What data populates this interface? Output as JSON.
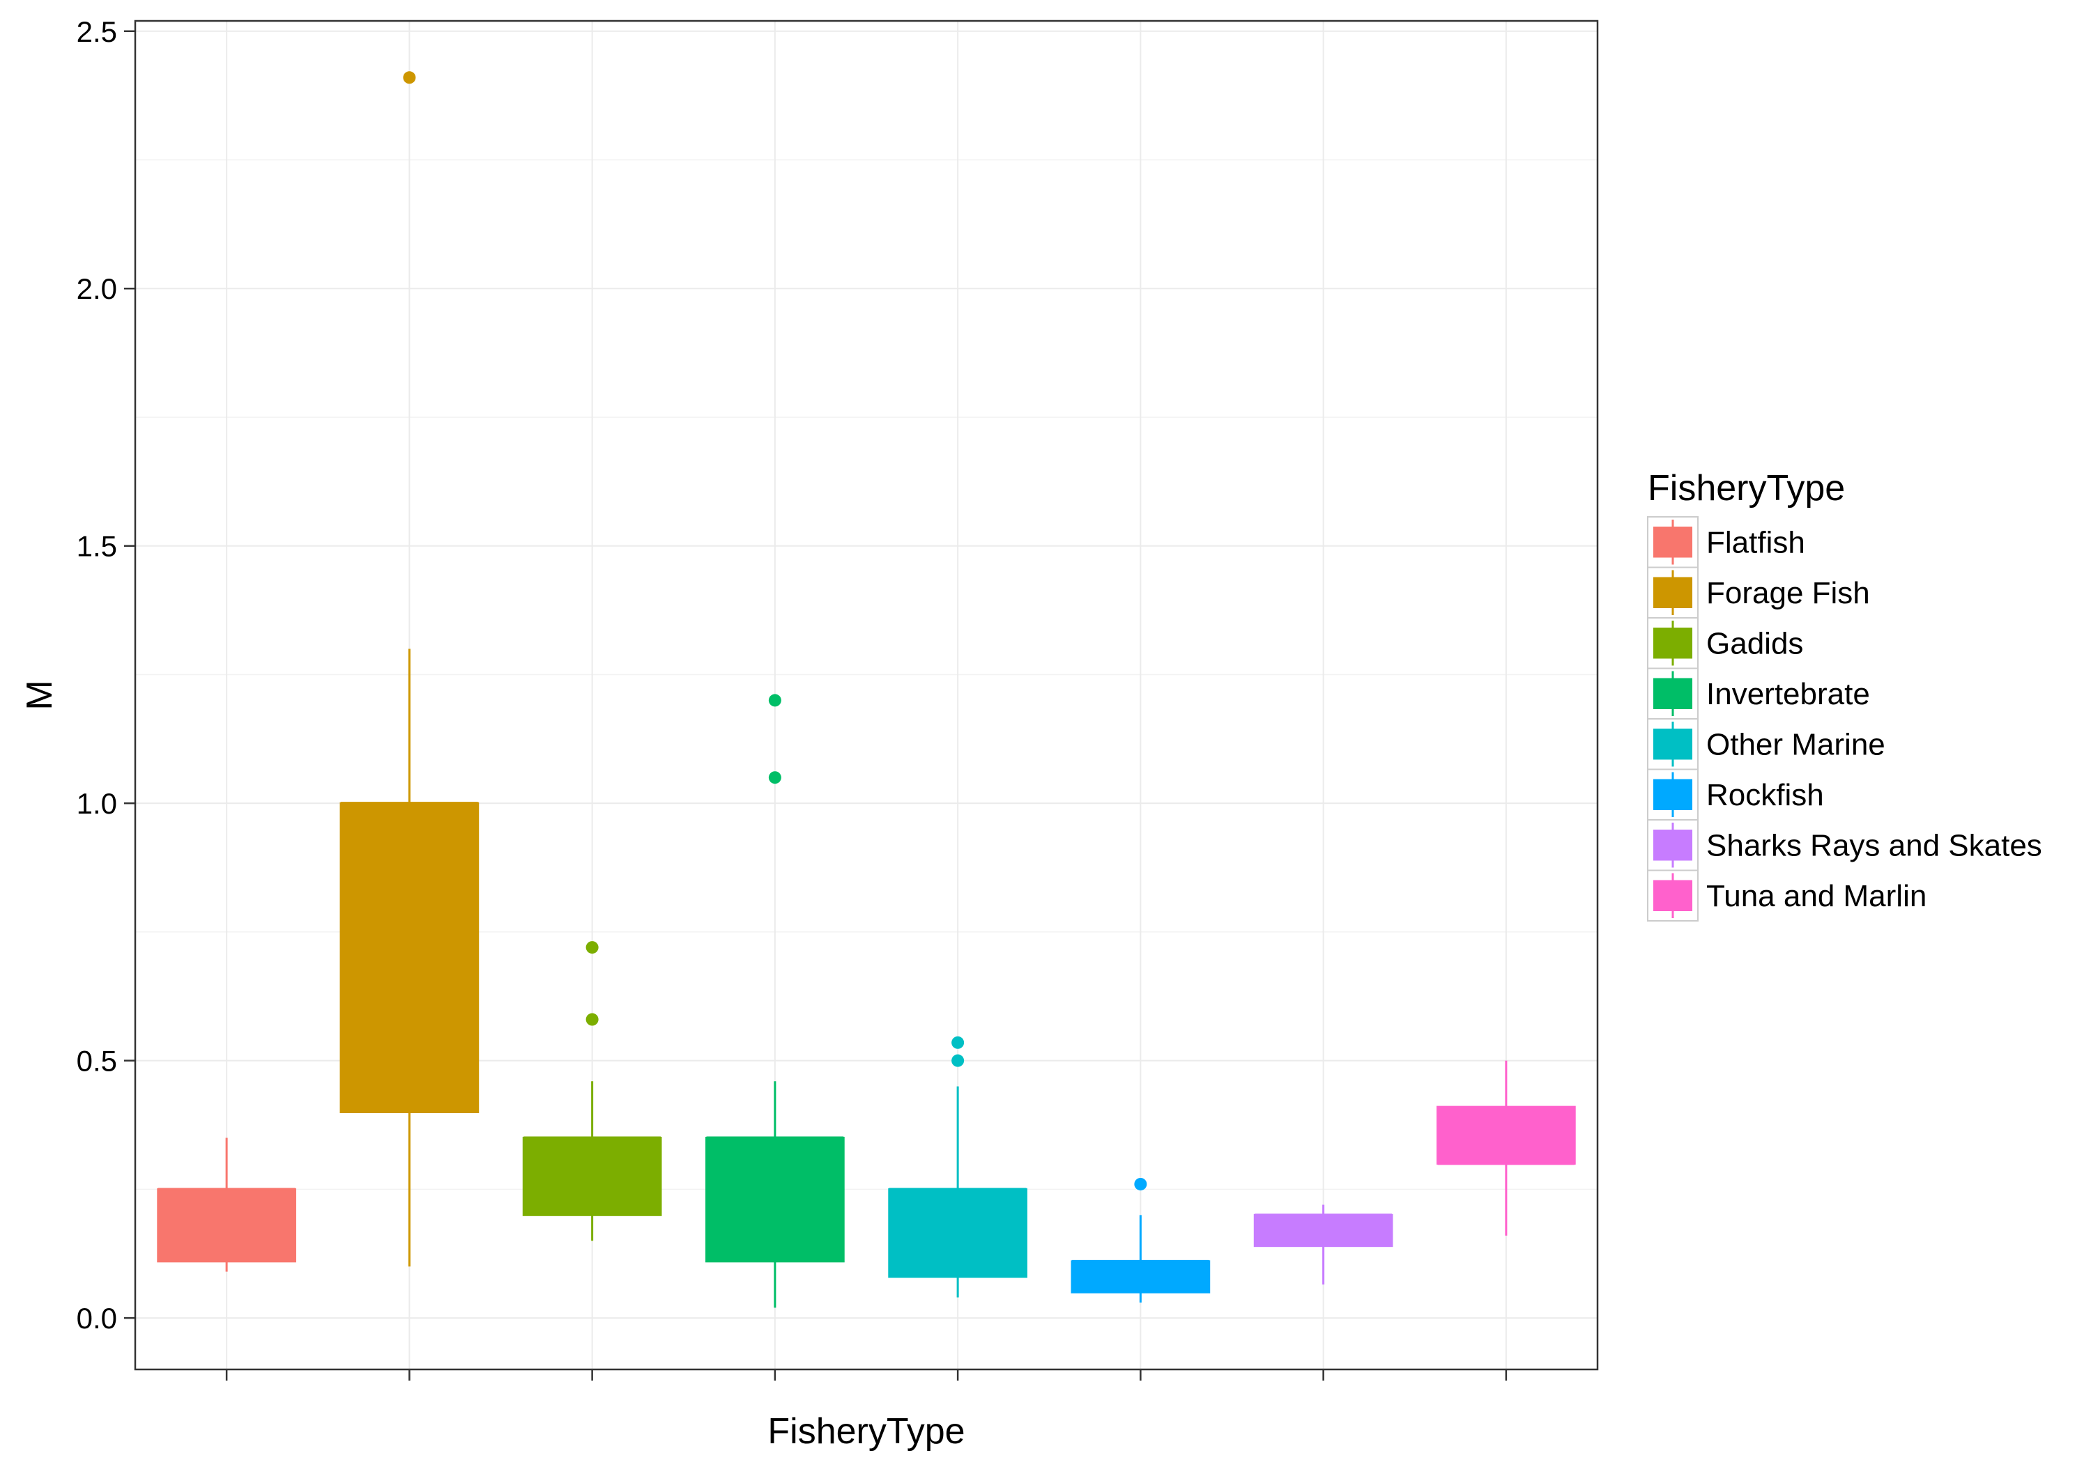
{
  "chart_data": {
    "type": "box",
    "xlabel": "FisheryType",
    "ylabel": "M",
    "ylim": [
      -0.1,
      2.52
    ],
    "yticks": [
      0.0,
      0.5,
      1.0,
      1.5,
      2.0,
      2.5
    ],
    "ytick_labels": [
      "0.0",
      "0.5",
      "1.0",
      "1.5",
      "2.0",
      "2.5"
    ],
    "grid": true,
    "x_tick_labels_shown": false,
    "legend": {
      "title": "FisheryType",
      "position": "right"
    },
    "series": [
      {
        "name": "Flatfish",
        "color": "#F8766D",
        "whisker_low": 0.09,
        "q1": 0.11,
        "median": 0.25,
        "q3": 0.25,
        "whisker_high": 0.35,
        "outliers": []
      },
      {
        "name": "Forage Fish",
        "color": "#CD9600",
        "whisker_low": 0.1,
        "q1": 0.4,
        "median": 1.0,
        "q3": 1.0,
        "whisker_high": 1.3,
        "outliers": [
          2.41
        ]
      },
      {
        "name": "Gadids",
        "color": "#7CAE00",
        "whisker_low": 0.15,
        "q1": 0.2,
        "median": 0.35,
        "q3": 0.35,
        "whisker_high": 0.46,
        "outliers": [
          0.58,
          0.72
        ]
      },
      {
        "name": "Invertebrate",
        "color": "#00BE67",
        "whisker_low": 0.02,
        "q1": 0.11,
        "median": 0.35,
        "q3": 0.35,
        "whisker_high": 0.46,
        "outliers": [
          1.05,
          1.2
        ]
      },
      {
        "name": "Other Marine",
        "color": "#00BFC4",
        "whisker_low": 0.04,
        "q1": 0.08,
        "median": 0.25,
        "q3": 0.25,
        "whisker_high": 0.45,
        "outliers": [
          0.5,
          0.535
        ]
      },
      {
        "name": "Rockfish",
        "color": "#00A9FF",
        "whisker_low": 0.03,
        "q1": 0.05,
        "median": 0.11,
        "q3": 0.11,
        "whisker_high": 0.2,
        "outliers": [
          0.26
        ]
      },
      {
        "name": "Sharks Rays and Skates",
        "color": "#C77CFF",
        "whisker_low": 0.065,
        "q1": 0.14,
        "median": 0.2,
        "q3": 0.2,
        "whisker_high": 0.22,
        "outliers": []
      },
      {
        "name": "Tuna and Marlin",
        "color": "#FF61CC",
        "whisker_low": 0.16,
        "q1": 0.3,
        "median": 0.3,
        "q3": 0.41,
        "whisker_high": 0.5,
        "outliers": []
      }
    ]
  }
}
